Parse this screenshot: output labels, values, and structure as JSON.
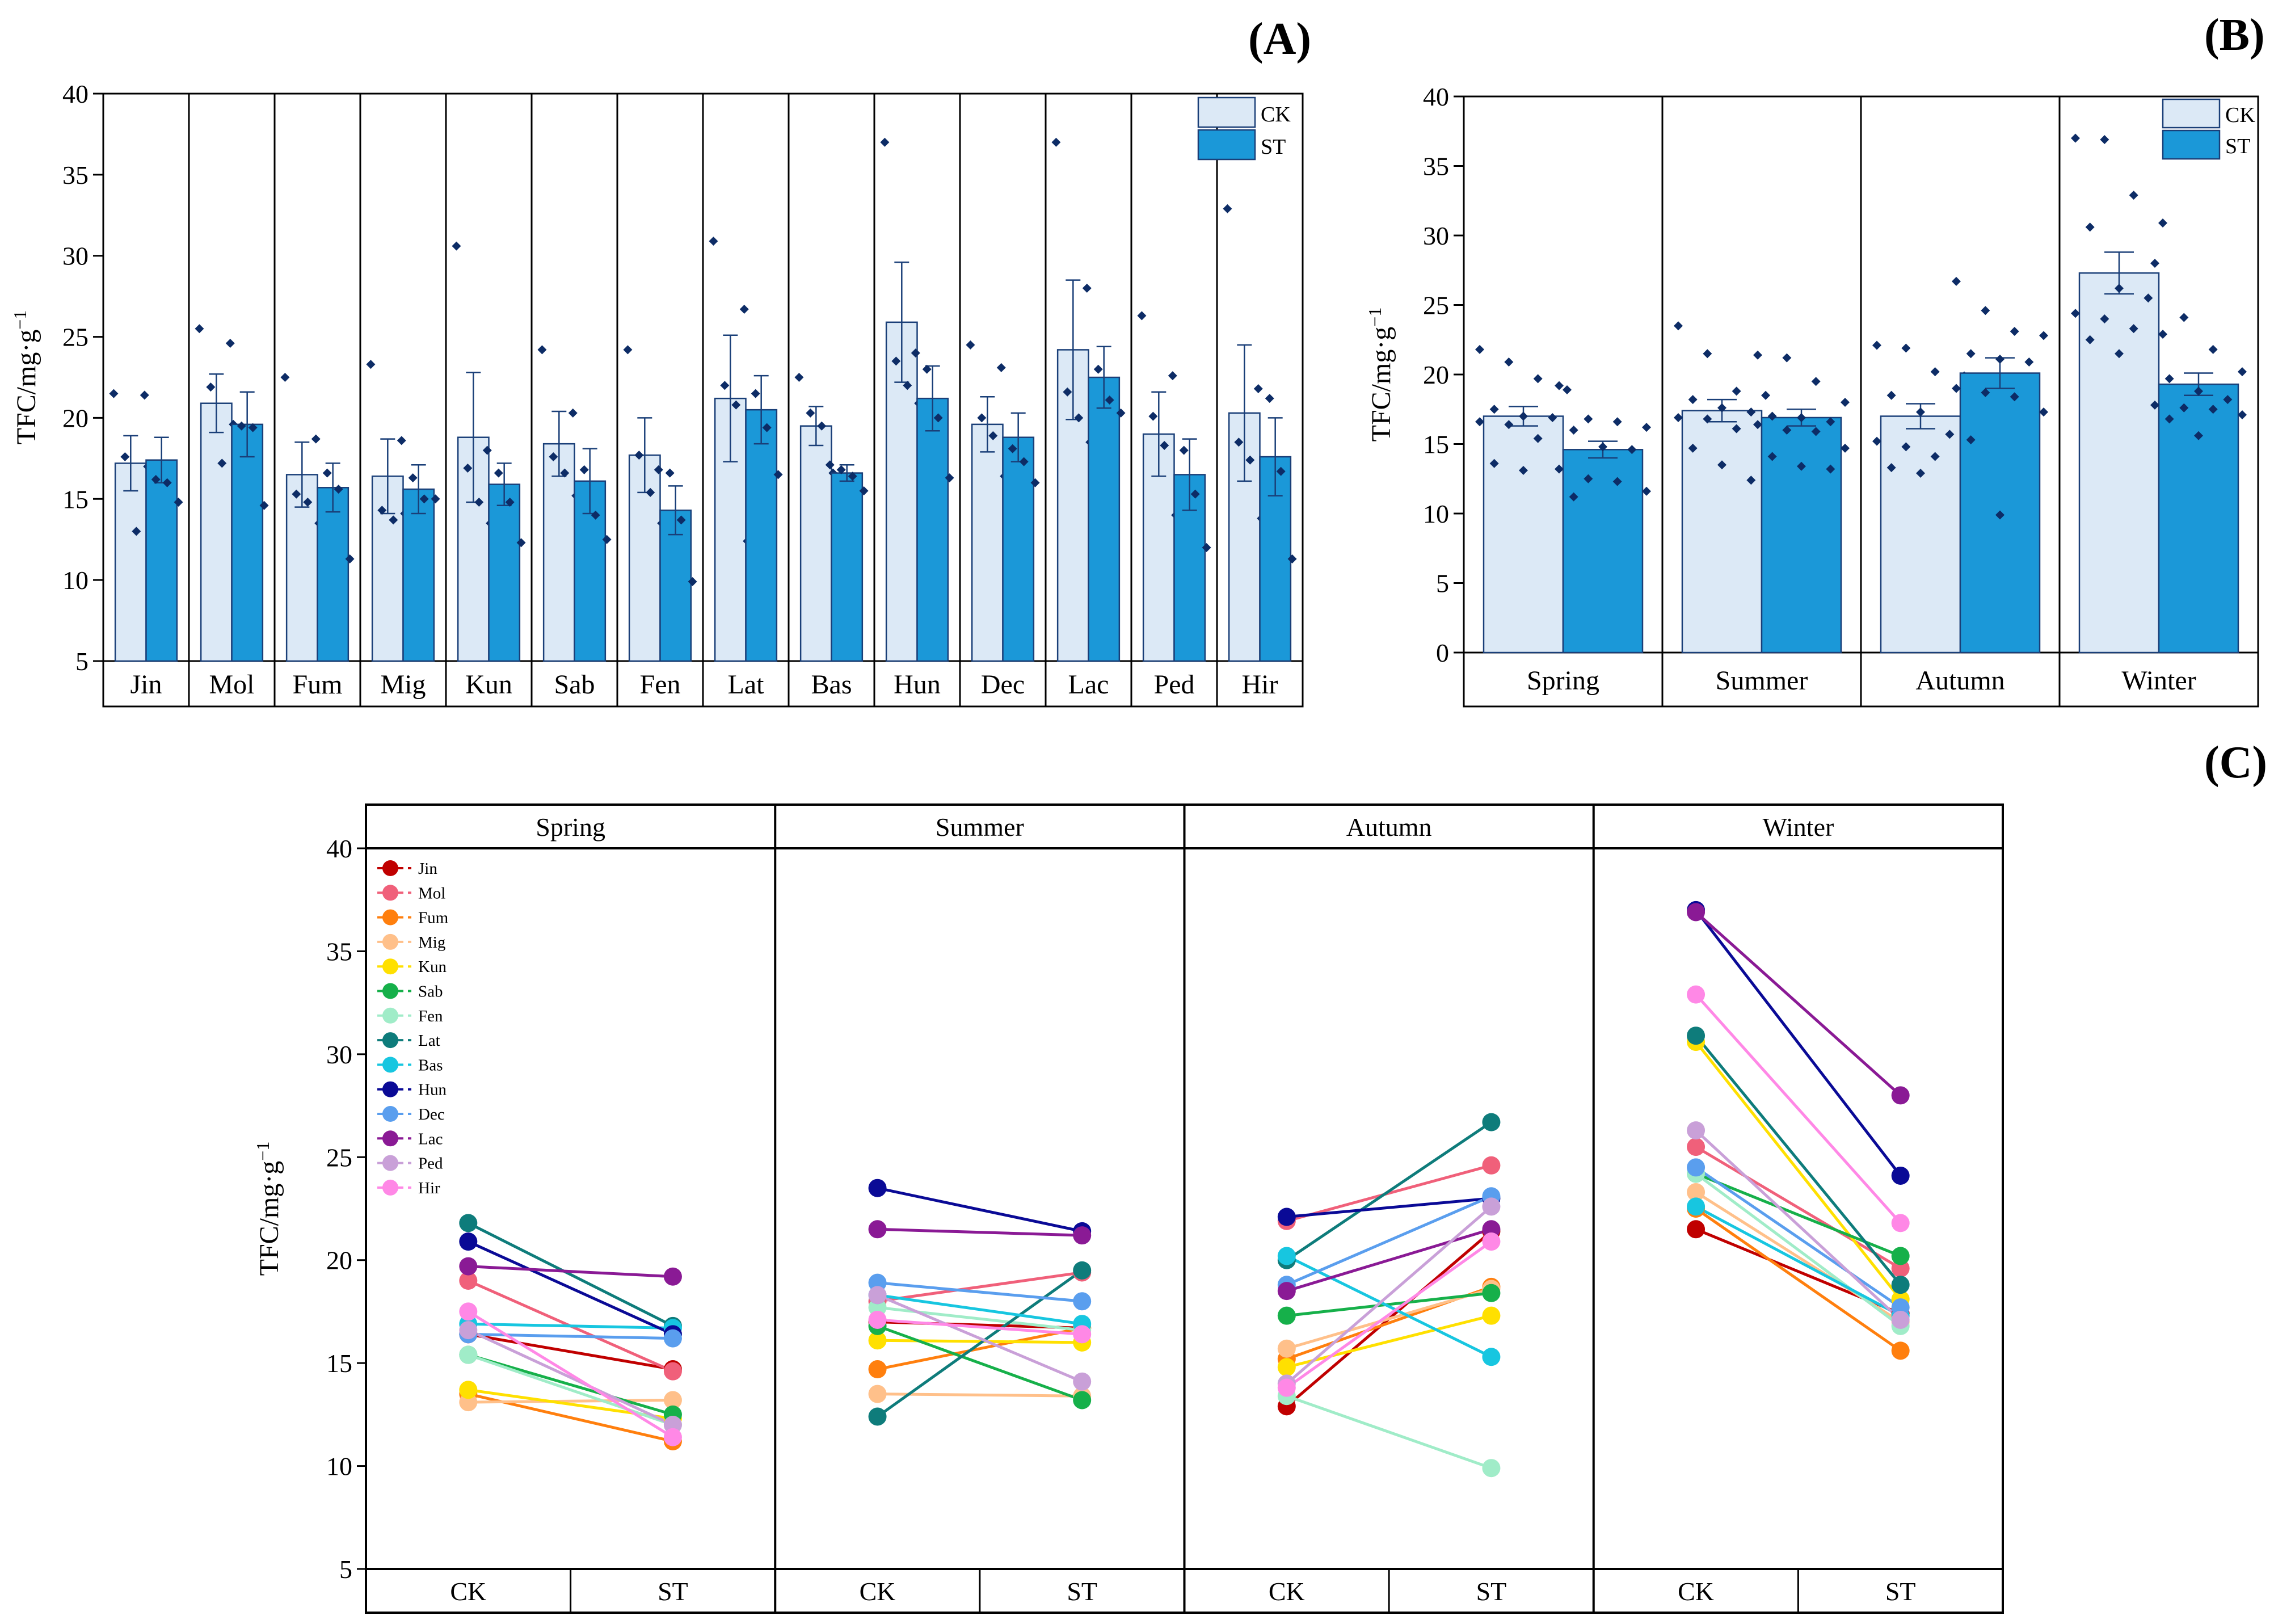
{
  "colors": {
    "ck_fill": "#dce9f6",
    "st_fill": "#1b98d8",
    "bar_edge": "#1a3f78",
    "dot": "#0d2c66"
  },
  "species_colors": [
    "#c00000",
    "#f0607a",
    "#ff7f0e",
    "#ffc08a",
    "#ffe000",
    "#16b04a",
    "#a0ecc8",
    "#0e7c7b",
    "#17c6e0",
    "#0a0a96",
    "#5a9eee",
    "#8a1a95",
    "#c9a0d8",
    "#ff88e6"
  ],
  "chart_data": [
    {
      "panel": "(A)",
      "type": "bar",
      "ylabel": "TFC/mg·g⁻¹",
      "ylim": [
        5,
        40
      ],
      "yticks": [
        5,
        10,
        15,
        20,
        25,
        30,
        35,
        40
      ],
      "legend": [
        "CK",
        "ST"
      ],
      "categories": [
        "Jin",
        "Mol",
        "Fum",
        "Mig",
        "Kun",
        "Sab",
        "Fen",
        "Lat",
        "Bas",
        "Hun",
        "Dec",
        "Lac",
        "Ped",
        "Hir"
      ],
      "series": [
        {
          "name": "CK",
          "values": [
            17.2,
            20.9,
            16.5,
            16.4,
            18.8,
            18.4,
            17.7,
            21.2,
            19.5,
            25.9,
            19.6,
            24.2,
            19.0,
            20.3
          ],
          "errors": [
            1.7,
            1.8,
            2.0,
            2.3,
            4.0,
            2.0,
            2.3,
            3.9,
            1.2,
            3.7,
            1.7,
            4.3,
            2.6,
            4.2
          ],
          "points": [
            [
              21.5,
              17.6,
              13.0,
              17.0
            ],
            [
              25.5,
              21.9,
              17.2,
              19.6
            ],
            [
              22.5,
              15.3,
              14.8,
              13.5
            ],
            [
              23.3,
              14.3,
              13.7,
              14.1
            ],
            [
              30.6,
              16.9,
              14.8,
              13.5
            ],
            [
              24.2,
              17.6,
              16.6,
              15.2
            ],
            [
              24.2,
              17.7,
              15.4,
              13.5
            ],
            [
              30.9,
              22.0,
              20.8,
              12.4
            ],
            [
              22.5,
              20.3,
              19.5,
              16.6
            ],
            [
              37.0,
              23.5,
              22.0,
              20.9
            ],
            [
              24.5,
              20.0,
              18.9,
              16.4
            ],
            [
              37.0,
              21.6,
              20.0,
              18.5
            ],
            [
              26.3,
              20.1,
              18.3,
              14.0
            ],
            [
              32.9,
              18.5,
              17.4,
              13.8
            ]
          ]
        },
        {
          "name": "ST",
          "values": [
            17.4,
            19.6,
            15.7,
            15.6,
            15.9,
            16.1,
            14.3,
            20.5,
            16.6,
            21.2,
            18.8,
            22.5,
            16.5,
            17.6
          ],
          "errors": [
            1.4,
            2.0,
            1.5,
            1.5,
            1.3,
            2.0,
            1.5,
            2.1,
            0.5,
            2.0,
            1.5,
            1.9,
            2.2,
            2.4
          ],
          "points": [
            [
              21.4,
              16.2,
              16.0,
              14.8
            ],
            [
              24.6,
              19.5,
              19.4,
              14.6
            ],
            [
              18.7,
              16.6,
              15.6,
              11.3
            ],
            [
              18.6,
              16.3,
              15.0,
              15.0
            ],
            [
              18.0,
              16.6,
              14.8,
              12.3
            ],
            [
              20.3,
              16.8,
              14.0,
              12.5
            ],
            [
              16.8,
              16.6,
              13.7,
              9.9
            ],
            [
              26.7,
              21.5,
              19.4,
              16.5
            ],
            [
              17.1,
              16.8,
              16.4,
              15.5
            ],
            [
              24.0,
              23.0,
              20.0,
              16.3
            ],
            [
              23.1,
              18.1,
              17.3,
              16.0
            ],
            [
              28.0,
              23.0,
              21.1,
              20.3
            ],
            [
              22.6,
              18.0,
              15.3,
              12.0
            ],
            [
              21.8,
              21.2,
              16.7,
              11.3
            ]
          ]
        }
      ]
    },
    {
      "panel": "(B)",
      "type": "bar",
      "ylabel": "TFC/mg·g⁻¹",
      "ylim": [
        0,
        40
      ],
      "yticks": [
        0,
        5,
        10,
        15,
        20,
        25,
        30,
        35,
        40
      ],
      "legend": [
        "CK",
        "ST"
      ],
      "categories": [
        "Spring",
        "Summer",
        "Autumn",
        "Winter"
      ],
      "series": [
        {
          "name": "CK",
          "values": [
            17.0,
            17.4,
            17.0,
            27.3
          ],
          "errors": [
            0.7,
            0.8,
            0.9,
            1.5
          ],
          "points": [
            [
              21.8,
              20.9,
              19.7,
              18.9,
              17.5,
              17.0,
              16.9,
              16.6,
              16.4,
              15.4,
              13.7,
              13.6,
              13.1
            ],
            [
              23.5,
              21.5,
              18.8,
              18.5,
              18.2,
              17.6,
              17.3,
              16.9,
              16.8,
              16.1,
              15.6,
              14.7,
              13.5,
              12.4
            ],
            [
              22.1,
              21.9,
              20.2,
              19.9,
              18.5,
              17.3,
              15.7,
              15.2,
              14.8,
              14.1,
              13.8,
              13.3,
              12.9
            ],
            [
              37.0,
              36.9,
              32.9,
              30.9,
              30.6,
              26.2,
              25.5,
              24.4,
              24.0,
              23.3,
              22.9,
              22.5,
              21.5
            ]
          ]
        },
        {
          "name": "ST",
          "values": [
            14.6,
            16.9,
            20.1,
            19.3
          ],
          "errors": [
            0.6,
            0.6,
            1.1,
            0.8
          ],
          "points": [
            [
              19.2,
              16.8,
              16.6,
              16.2,
              16.0,
              14.8,
              14.6,
              13.2,
              12.5,
              12.3,
              11.6,
              11.2
            ],
            [
              21.4,
              21.2,
              19.5,
              18.0,
              17.0,
              16.9,
              16.6,
              16.4,
              16.0,
              15.9,
              14.7,
              14.1,
              13.4,
              13.2
            ],
            [
              26.7,
              24.6,
              23.1,
              22.8,
              21.5,
              21.1,
              20.9,
              19.0,
              18.7,
              18.4,
              17.3,
              15.3,
              9.9
            ],
            [
              28.0,
              24.1,
              21.8,
              20.2,
              19.7,
              18.8,
              18.2,
              17.8,
              17.6,
              17.5,
              17.1,
              16.8,
              15.6
            ]
          ]
        }
      ]
    },
    {
      "panel": "(C)",
      "type": "line",
      "ylabel": "TFC/mg·g⁻¹",
      "ylim": [
        5,
        40
      ],
      "yticks": [
        5,
        10,
        15,
        20,
        25,
        30,
        35,
        40
      ],
      "facets": [
        "Spring",
        "Summer",
        "Autumn",
        "Winter"
      ],
      "x": [
        "CK",
        "ST"
      ],
      "legend": [
        "Jin",
        "Mol",
        "Fum",
        "Mig",
        "Kun",
        "Sab",
        "Fen",
        "Lat",
        "Bas",
        "Hun",
        "Dec",
        "Lac",
        "Ped",
        "Hir"
      ],
      "series": [
        {
          "name": "Jin",
          "values": [
            [
              16.4,
              14.7
            ],
            [
              17.0,
              16.7
            ],
            [
              12.9,
              21.4
            ],
            [
              21.5,
              17.4
            ]
          ]
        },
        {
          "name": "Mol",
          "values": [
            [
              19.0,
              14.6
            ],
            [
              18.0,
              19.4
            ],
            [
              21.9,
              24.6
            ],
            [
              25.5,
              19.6
            ]
          ]
        },
        {
          "name": "Fum",
          "values": [
            [
              13.5,
              11.2
            ],
            [
              14.7,
              16.7
            ],
            [
              15.2,
              18.7
            ],
            [
              22.5,
              15.6
            ]
          ]
        },
        {
          "name": "Mig",
          "values": [
            [
              13.1,
              13.2
            ],
            [
              13.5,
              13.4
            ],
            [
              15.7,
              18.6
            ],
            [
              23.3,
              17.0
            ]
          ]
        },
        {
          "name": "Kun",
          "values": [
            [
              13.7,
              12.3
            ],
            [
              16.1,
              16.0
            ],
            [
              14.8,
              17.3
            ],
            [
              30.6,
              18.1
            ]
          ]
        },
        {
          "name": "Sab",
          "values": [
            [
              15.4,
              12.5
            ],
            [
              16.8,
              13.2
            ],
            [
              17.3,
              18.4
            ],
            [
              24.2,
              20.2
            ]
          ]
        },
        {
          "name": "Fen",
          "values": [
            [
              15.4,
              12.0
            ],
            [
              17.7,
              16.6
            ],
            [
              13.4,
              9.9
            ],
            [
              24.2,
              16.8
            ]
          ]
        },
        {
          "name": "Lat",
          "values": [
            [
              21.8,
              16.8
            ],
            [
              12.4,
              19.5
            ],
            [
              20.0,
              26.7
            ],
            [
              30.9,
              18.8
            ]
          ]
        },
        {
          "name": "Bas",
          "values": [
            [
              16.9,
              16.7
            ],
            [
              18.3,
              16.9
            ],
            [
              20.2,
              15.3
            ],
            [
              22.6,
              17.3
            ]
          ]
        },
        {
          "name": "Hun",
          "values": [
            [
              20.9,
              16.4
            ],
            [
              23.5,
              21.4
            ],
            [
              22.1,
              23.0
            ],
            [
              37.0,
              24.1
            ]
          ]
        },
        {
          "name": "Dec",
          "values": [
            [
              16.4,
              16.2
            ],
            [
              18.9,
              18.0
            ],
            [
              18.8,
              23.1
            ],
            [
              24.5,
              17.7
            ]
          ]
        },
        {
          "name": "Lac",
          "values": [
            [
              19.7,
              19.2
            ],
            [
              21.5,
              21.2
            ],
            [
              18.5,
              21.5
            ],
            [
              36.9,
              28.0
            ]
          ]
        },
        {
          "name": "Ped",
          "values": [
            [
              16.6,
              12.0
            ],
            [
              18.3,
              14.1
            ],
            [
              14.0,
              22.6
            ],
            [
              26.3,
              17.1
            ]
          ]
        },
        {
          "name": "Hir",
          "values": [
            [
              17.5,
              11.4
            ],
            [
              17.1,
              16.4
            ],
            [
              13.8,
              20.9
            ],
            [
              32.9,
              21.8
            ]
          ]
        }
      ]
    }
  ]
}
